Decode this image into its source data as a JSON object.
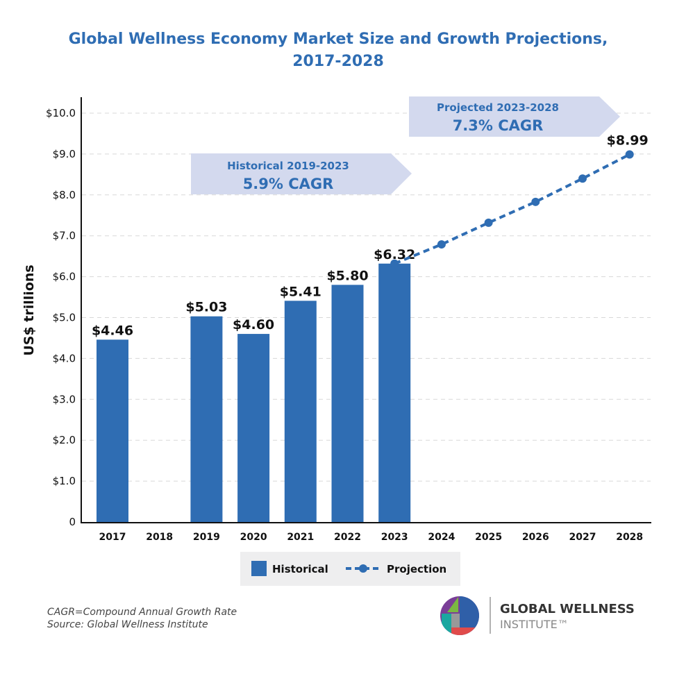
{
  "chart_data": {
    "type": "bar",
    "title": "Global Wellness Economy Market Size and Growth Projections, 2017-2028",
    "title_lines": [
      "Global Wellness Economy Market Size and Growth Projections,",
      "2017-2028"
    ],
    "xlabel": "",
    "ylabel": "US$ trillions",
    "ylim": [
      0,
      10
    ],
    "yticks": [
      "0",
      "$1.0",
      "$2.0",
      "$3.0",
      "$4.0",
      "$5.0",
      "$6.0",
      "$7.0",
      "$8.0",
      "$9.0",
      "$10.0"
    ],
    "grid": true,
    "categories": [
      "2017",
      "2018",
      "2019",
      "2020",
      "2021",
      "2022",
      "2023",
      "2024",
      "2025",
      "2026",
      "2027",
      "2028"
    ],
    "series": [
      {
        "name": "Historical",
        "type": "bar",
        "color": "#2f6db3",
        "values": [
          4.46,
          null,
          5.03,
          4.6,
          5.41,
          5.8,
          6.32,
          null,
          null,
          null,
          null,
          null
        ],
        "labels": [
          "$4.46",
          "",
          "$5.03",
          "$4.60",
          "$5.41",
          "$5.80",
          "$6.32",
          "",
          "",
          "",
          "",
          ""
        ]
      },
      {
        "name": "Projection",
        "type": "line",
        "style": "dashed",
        "color": "#2f6db3",
        "values": [
          null,
          null,
          null,
          null,
          null,
          null,
          6.32,
          6.79,
          7.32,
          7.83,
          8.4,
          8.99
        ],
        "labels": [
          "",
          "",
          "",
          "",
          "",
          "",
          "",
          "",
          "",
          "",
          "",
          "$8.99"
        ]
      }
    ],
    "annotations": [
      {
        "line1": "Historical 2019-2023",
        "line2": "5.9% CAGR"
      },
      {
        "line1": "Projected 2023-2028",
        "line2": "7.3% CAGR"
      }
    ],
    "annotation_color": "#d3d9ee",
    "legend": {
      "placement": "bottom",
      "items": [
        "Historical",
        "Projection"
      ]
    }
  },
  "footer": {
    "note1": "CAGR=Compound Annual Growth Rate",
    "note2": "Source: Global Wellness Institute"
  },
  "logo": {
    "line1": "GLOBAL WELLNESS",
    "line2": "INSTITUTE™"
  }
}
